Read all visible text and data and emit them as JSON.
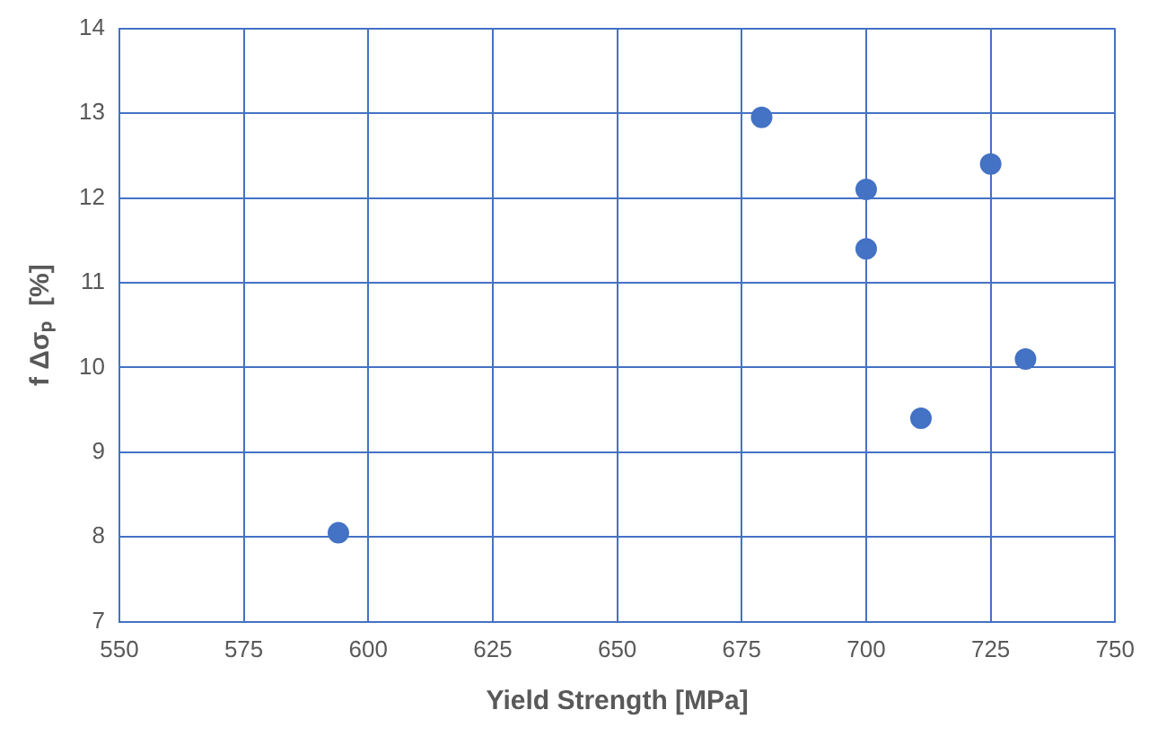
{
  "chart_data": {
    "type": "scatter",
    "xlabel": "Yield Strength [MPa]",
    "ylabel": "f Δσₚ  [%]",
    "series": [
      {
        "color": "#4472c4",
        "x": [
          594,
          679,
          700,
          700,
          725,
          732,
          711
        ],
        "values": [
          8.05,
          12.95,
          12.1,
          11.4,
          12.4,
          10.1,
          9.4
        ]
      }
    ],
    "xlim": [
      550,
      750
    ],
    "xticks": [
      550,
      575,
      600,
      625,
      650,
      675,
      700,
      725,
      750
    ],
    "ylim": [
      7,
      14
    ],
    "yticks": [
      7,
      8,
      9,
      10,
      11,
      12,
      13,
      14
    ],
    "grid": true,
    "legend": false,
    "marker": "circle"
  }
}
